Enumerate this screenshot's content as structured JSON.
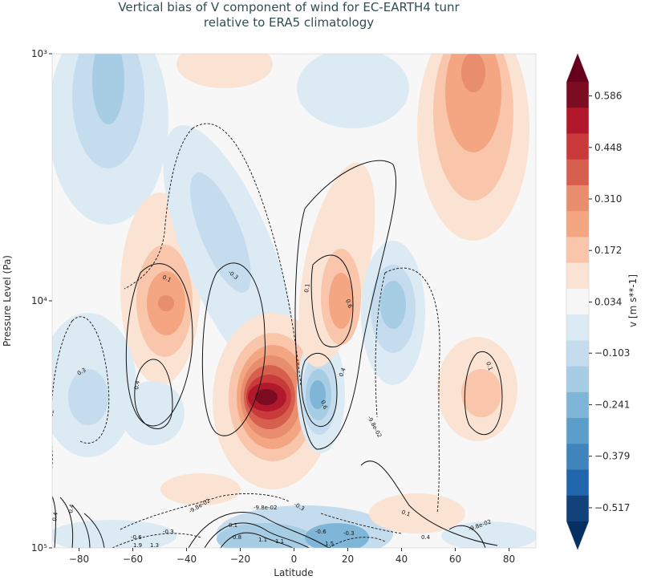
{
  "chart_data": {
    "type": "contour",
    "title_lines": [
      "Vertical bias of V component of wind for EC-EARTH4 tunr",
      "relative to ERA5 climatology"
    ],
    "xlabel": "Latitude",
    "ylabel": "Pressure Level (Pa)",
    "xlim": [
      -90,
      90
    ],
    "x_ticks": [
      -80,
      -60,
      -40,
      -20,
      0,
      20,
      40,
      60,
      80
    ],
    "x_tick_labels": [
      "−80",
      "−60",
      "−40",
      "−20",
      "0",
      "20",
      "40",
      "60",
      "80"
    ],
    "ylim": [
      100000,
      1000
    ],
    "y_scale": "log",
    "y_ticks": [
      1000,
      10000,
      100000
    ],
    "y_tick_labels": [
      "10³",
      "10⁴",
      "10⁵"
    ],
    "colorbar": {
      "label": "v [m s**-1]",
      "colormap": "RdBu_r",
      "extend": "both",
      "tick_values": [
        0.586,
        0.448,
        0.31,
        0.172,
        0.034,
        -0.103,
        -0.241,
        -0.379,
        -0.517
      ],
      "tick_labels": [
        "0.586",
        "0.448",
        "0.310",
        "0.172",
        "0.034",
        "−0.103",
        "−0.241",
        "−0.379",
        "−0.517"
      ],
      "band_colors": [
        "#7b0c22",
        "#b2182b",
        "#c93a3a",
        "#d6604d",
        "#e88d6e",
        "#f4a582",
        "#f9c5ab",
        "#fbe3d4",
        "#f7f7f7",
        "#dceaf3",
        "#c4dced",
        "#a6cde3",
        "#7fb5d6",
        "#5a9ec9",
        "#3f84bb",
        "#2166ac",
        "#11427a"
      ],
      "end_colors": [
        "#67001f",
        "#053061"
      ]
    },
    "shaded_features": [
      {
        "lat": -65,
        "p": 1700,
        "value": -0.17
      },
      {
        "lat": -45,
        "p": 10000,
        "value": 0.25
      },
      {
        "lat": -30,
        "p": 12000,
        "value": -0.1
      },
      {
        "lat": -2,
        "p": 40000,
        "value": 0.59
      },
      {
        "lat": 12,
        "p": 40000,
        "value": -0.3
      },
      {
        "lat": 20,
        "p": 10000,
        "value": 0.2
      },
      {
        "lat": 40,
        "p": 10000,
        "value": -0.2
      },
      {
        "lat": 65,
        "p": 1500,
        "value": 0.22
      },
      {
        "lat": 65,
        "p": 40000,
        "value": 0.08
      },
      {
        "lat": -75,
        "p": 40000,
        "value": -0.1
      }
    ],
    "contour_labels": [
      "0.1",
      "0.4",
      "-0.3",
      "0.3",
      "-9.8e-02",
      "0.1",
      "0.6",
      "0.4",
      "0.6",
      "-9.8e-02",
      "0.1",
      "-9.8e-02",
      "-9.8e-02",
      "-0.3",
      "0.1",
      "0.4",
      "-9.8e-02",
      "-0.6",
      "-0.3",
      "-0.6",
      "-0.3",
      "1.9",
      "1.3",
      "0.8",
      "0.1",
      "1.1",
      "1.1",
      "1.5",
      "0.4",
      "0.4"
    ]
  }
}
